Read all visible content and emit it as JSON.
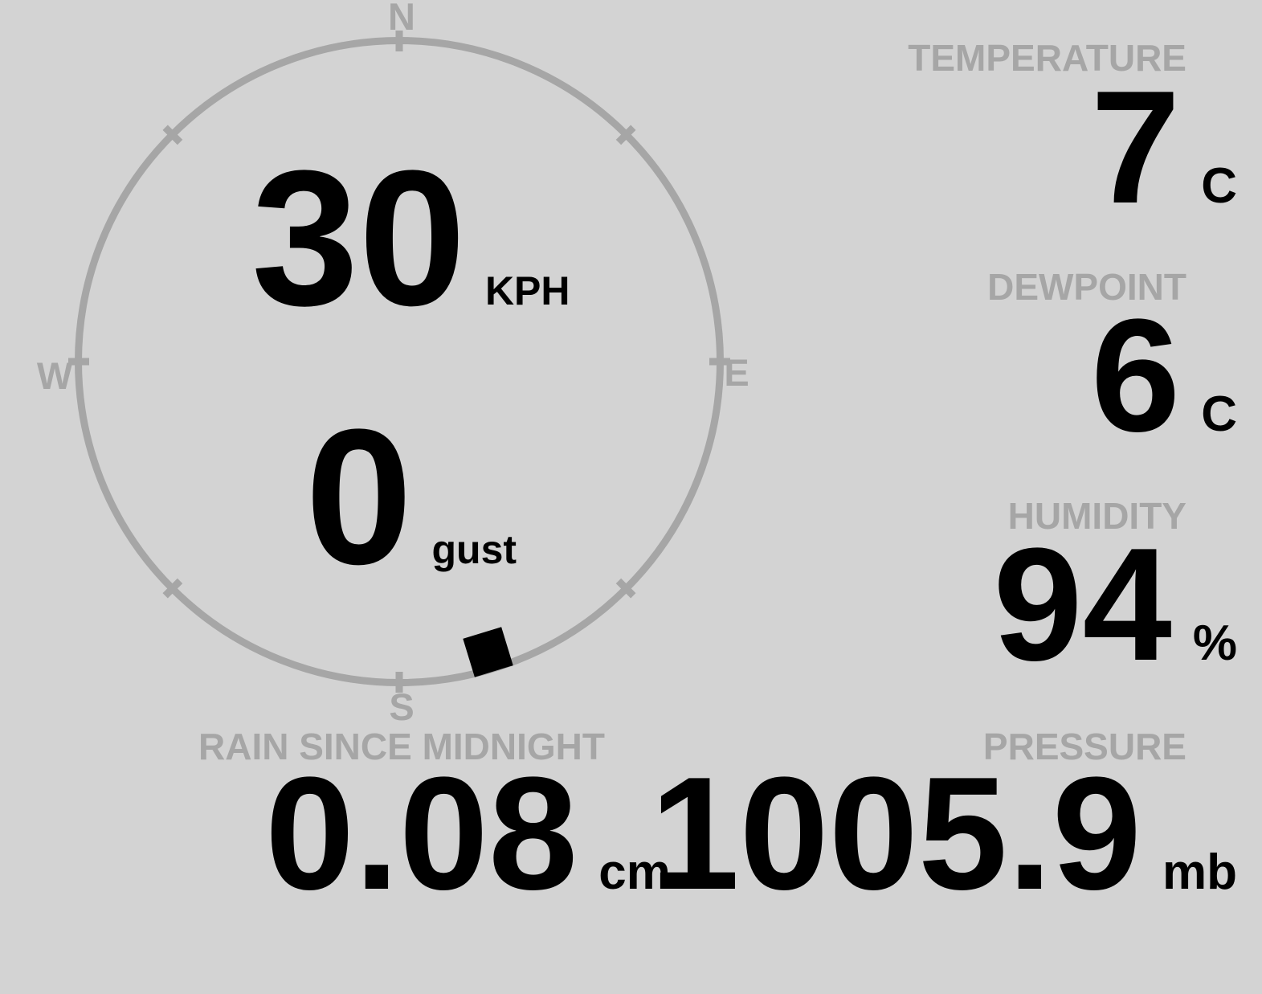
{
  "wind": {
    "speed": "30",
    "speed_unit": "KPH",
    "gust": "0",
    "gust_label": "gust",
    "direction_deg": 163,
    "compass": {
      "north": "N",
      "east": "E",
      "south": "S",
      "west": "W"
    }
  },
  "metrics": {
    "temperature": {
      "label": "TEMPERATURE",
      "value": "7",
      "unit": "C"
    },
    "dewpoint": {
      "label": "DEWPOINT",
      "value": "6",
      "unit": "C"
    },
    "humidity": {
      "label": "HUMIDITY",
      "value": "94",
      "unit": "%"
    },
    "rain_since_midnight": {
      "label": "RAIN SINCE MIDNIGHT",
      "value": "0.08",
      "unit": "cm"
    },
    "pressure": {
      "label": "PRESSURE",
      "value": "1005.9",
      "unit": "mb"
    }
  },
  "colors": {
    "background": "#d3d3d3",
    "muted_gray": "#a6a6a6",
    "value_black": "#000000"
  }
}
